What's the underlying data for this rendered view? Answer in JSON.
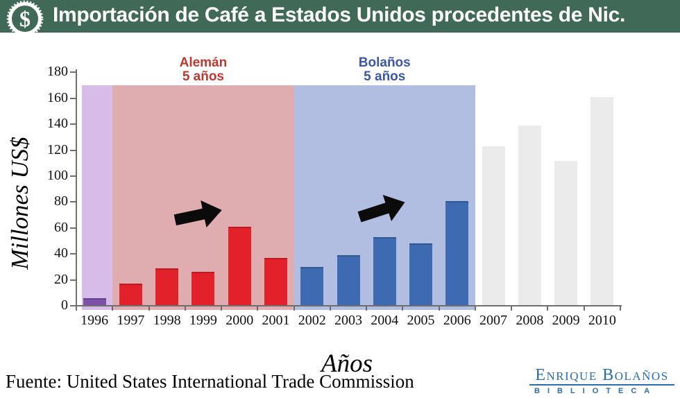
{
  "header": {
    "title": "Importación de Café a Estados Unidos procedentes de Nic.",
    "icon": "dollar-coin-icon",
    "bg_color": "#406a57"
  },
  "chart_data": {
    "type": "bar",
    "title": "Importación de Café a Estados Unidos procedentes de Nic.",
    "xlabel": "Años",
    "ylabel": "Millones US$",
    "ylim": [
      0,
      180
    ],
    "ytick_interval": 20,
    "band_top_value": 170,
    "grid": false,
    "legend": false,
    "categories": [
      "1996",
      "1997",
      "1998",
      "1999",
      "2000",
      "2001",
      "2002",
      "2003",
      "2004",
      "2005",
      "2006",
      "2007",
      "2008",
      "2009",
      "2010"
    ],
    "values": [
      6,
      17,
      29,
      26,
      61,
      37,
      30,
      39,
      53,
      48,
      81,
      123,
      139,
      112,
      161
    ],
    "periods": [
      {
        "id": "pre-aleman",
        "label": "",
        "sublabel": "",
        "years": [
          "1996"
        ],
        "bar_color": "#7b52a7",
        "band_color": "#d7bbe9",
        "label_color": null
      },
      {
        "id": "aleman",
        "label": "Alemán",
        "sublabel": "5 años",
        "years": [
          "1997",
          "1998",
          "1999",
          "2000",
          "2001"
        ],
        "bar_color": "#e3212a",
        "band_color": "#dfadb0",
        "label_color": "#bf382f"
      },
      {
        "id": "bolanos",
        "label": "Bolaños",
        "sublabel": "5 años",
        "years": [
          "2002",
          "2003",
          "2004",
          "2005",
          "2006"
        ],
        "bar_color": "#3d6ab0",
        "band_color": "#b2bee1",
        "label_color": "#3c56a9"
      },
      {
        "id": "post-bolanos",
        "label": "",
        "sublabel": "",
        "years": [
          "2007",
          "2008",
          "2009",
          "2010"
        ],
        "bar_color": "#ebebeb",
        "band_color": null,
        "label_color": null
      }
    ],
    "annotations": [
      {
        "type": "block-arrow",
        "over_period": "aleman",
        "meaning": "rising imports toward 2000"
      },
      {
        "type": "block-arrow",
        "over_period": "bolanos",
        "meaning": "rising imports toward 2006"
      }
    ]
  },
  "footer": {
    "source": "Fuente: United States International Trade Commission",
    "logo": {
      "line1": "Enrique Bolaños",
      "line2": "BIBLIOTECA",
      "color": "#2a6cae"
    }
  }
}
